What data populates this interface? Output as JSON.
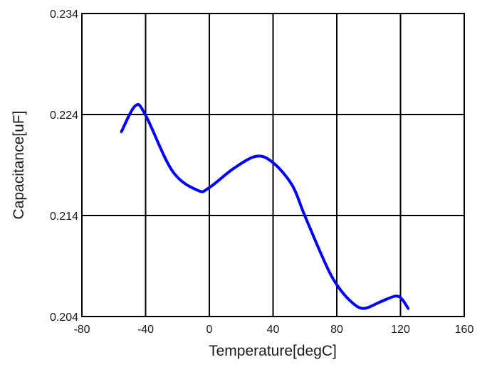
{
  "chart_data": {
    "type": "line",
    "title": "",
    "xlabel": "Temperature[degC]",
    "ylabel": "Capacitance[uF]",
    "xlim": [
      -80,
      160
    ],
    "ylim": [
      0.204,
      0.234
    ],
    "xticks": [
      "-80",
      "-40",
      "0",
      "40",
      "80",
      "120",
      "160"
    ],
    "yticks": [
      "0.204",
      "0.214",
      "0.224",
      "0.234"
    ],
    "xtick_values": [
      -80,
      -40,
      0,
      40,
      80,
      120,
      160
    ],
    "ytick_values": [
      0.204,
      0.214,
      0.224,
      0.234
    ],
    "grid": true,
    "series": [
      {
        "name": "Capacitance",
        "color": "#0000ff",
        "x": [
          -55.2,
          -46.4,
          -40,
          -23.2,
          -7.2,
          0,
          15.2,
          29.6,
          40,
          52,
          60,
          72.8,
          80,
          88.8,
          96.8,
          108,
          116.8,
          120.8,
          124.8
        ],
        "y": [
          0.2223,
          0.22487,
          0.22393,
          0.21841,
          0.21649,
          0.21677,
          0.21865,
          0.21987,
          0.21923,
          0.217,
          0.21395,
          0.20926,
          0.20715,
          0.2055,
          0.2048,
          0.2055,
          0.20602,
          0.20574,
          0.2048
        ]
      }
    ]
  }
}
